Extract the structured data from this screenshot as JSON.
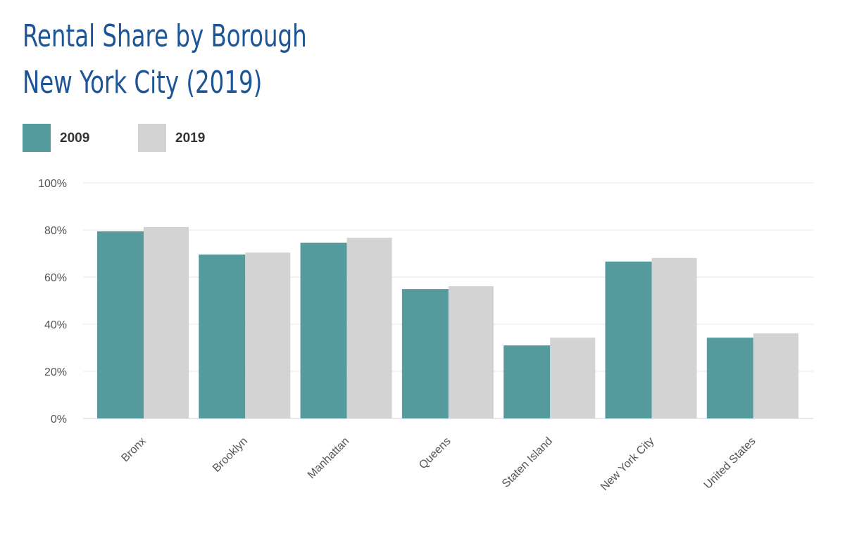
{
  "chart_data": {
    "type": "bar",
    "title": "Rental Share by Borough",
    "subtitle": "New York City (2019)",
    "categories": [
      "Bronx",
      "Brooklyn",
      "Manhattan",
      "Queens",
      "Staten Island",
      "New York City",
      "United States"
    ],
    "series": [
      {
        "name": "2009",
        "color": "#559a9c",
        "values": [
          79.4,
          69.6,
          74.6,
          54.9,
          31.0,
          66.6,
          34.3
        ]
      },
      {
        "name": "2019",
        "color": "#d3d3d3",
        "values": [
          81.2,
          70.4,
          76.7,
          56.1,
          34.3,
          68.1,
          36.1
        ]
      }
    ],
    "yticks": [
      "0%",
      "20%",
      "40%",
      "60%",
      "80%",
      "100%"
    ],
    "ylim": [
      0,
      100
    ],
    "grid": true,
    "legend": "top-left",
    "xlabel": "",
    "ylabel": ""
  }
}
